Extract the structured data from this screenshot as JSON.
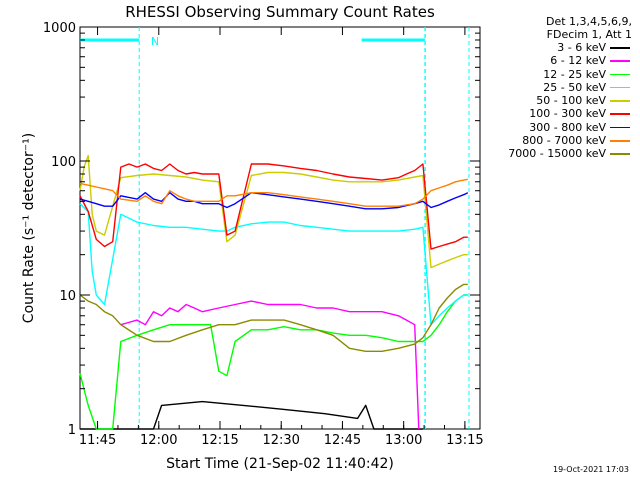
{
  "chart_data": {
    "type": "line",
    "title": "RHESSI Observing Summary Count Rates",
    "xlabel": "Start Time (21-Sep-02 11:40:42)",
    "ylabel": "Count Rate (s⁻¹ detector⁻¹)",
    "yscale": "log",
    "ylim": [
      1,
      1000
    ],
    "xlim_minutes_after_start": [
      0,
      98
    ],
    "x_ticks": [
      {
        "label": "11:45",
        "minute": 4.3
      },
      {
        "label": "12:00",
        "minute": 19.3
      },
      {
        "label": "12:15",
        "minute": 34.3
      },
      {
        "label": "12:30",
        "minute": 49.3
      },
      {
        "label": "12:45",
        "minute": 64.3
      },
      {
        "label": "13:00",
        "minute": 79.3
      },
      {
        "label": "13:15",
        "minute": 94.3
      }
    ],
    "y_ticks": [
      {
        "label": "1",
        "value": 1
      },
      {
        "label": "10",
        "value": 10
      },
      {
        "label": "100",
        "value": 100
      },
      {
        "label": "1000",
        "value": 1000
      }
    ],
    "annotation": "N",
    "night_flag": {
      "value": 800,
      "intervals": [
        [
          0,
          14.5
        ],
        [
          69,
          84.5
        ]
      ],
      "dashed_markers": [
        14.5,
        84.5,
        84.6,
        95.3
      ],
      "color": "#00ffff"
    },
    "legend_header": [
      "Det 1,3,4,5,6,9,",
      "FDecim 1, Att 1"
    ],
    "series": [
      {
        "name": "3 - 6 keV",
        "color": "#000000",
        "x": [
          0,
          10,
          12,
          18,
          20,
          30,
          40,
          50,
          60,
          68,
          70,
          72,
          82,
          84
        ],
        "y": [
          1,
          1,
          1,
          1,
          1.5,
          1.6,
          1.5,
          1.4,
          1.3,
          1.2,
          1.5,
          1,
          1,
          1
        ]
      },
      {
        "name": "6 - 12 keV",
        "color": "#ff00ff",
        "x": [
          10,
          14,
          16,
          18,
          20,
          22,
          24,
          26,
          28,
          30,
          34,
          38,
          42,
          46,
          50,
          54,
          58,
          62,
          66,
          70,
          74,
          78,
          80,
          82,
          83
        ],
        "y": [
          6,
          6.5,
          6,
          7.5,
          7,
          8,
          7.5,
          8.5,
          8,
          7.5,
          8,
          8.5,
          9,
          8.5,
          8.5,
          8.5,
          8,
          8,
          7.5,
          7.5,
          7.5,
          7,
          6.5,
          6,
          1
        ]
      },
      {
        "name": "12 - 25 keV",
        "color": "#00ff00",
        "x": [
          0,
          2,
          4,
          6,
          8,
          10,
          14,
          18,
          22,
          26,
          30,
          32,
          34,
          36,
          38,
          42,
          46,
          50,
          54,
          58,
          62,
          66,
          70,
          74,
          78,
          82,
          84,
          86,
          88,
          90,
          92,
          94,
          95
        ],
        "y": [
          2.6,
          1.5,
          1,
          1,
          1,
          4.5,
          5,
          5.5,
          6,
          6,
          6,
          6,
          2.7,
          2.5,
          4.5,
          5.5,
          5.5,
          5.8,
          5.5,
          5.5,
          5.2,
          5,
          5,
          4.8,
          4.5,
          4.5,
          4.5,
          5,
          6,
          7.5,
          9,
          10,
          10
        ]
      },
      {
        "name": "25 - 50 keV",
        "color": "#00ffff",
        "x": [
          0,
          2,
          3,
          4,
          6,
          10,
          14,
          18,
          22,
          26,
          30,
          34,
          36,
          38,
          42,
          46,
          50,
          54,
          58,
          62,
          66,
          70,
          74,
          78,
          82,
          84,
          86,
          88,
          90,
          92,
          94,
          95
        ],
        "y": [
          48,
          42,
          15,
          10,
          8.5,
          40,
          35,
          33,
          32,
          32,
          31,
          30,
          30,
          32,
          34,
          35,
          35,
          33,
          32,
          31,
          30,
          30,
          30,
          30,
          31,
          32,
          6,
          7,
          8,
          9,
          10,
          10
        ]
      },
      {
        "name": "50 - 100 keV",
        "color": "#cccc00",
        "x": [
          0,
          1,
          2,
          3,
          4,
          6,
          10,
          14,
          18,
          22,
          26,
          30,
          34,
          36,
          38,
          42,
          46,
          50,
          54,
          58,
          62,
          66,
          70,
          74,
          78,
          82,
          84,
          86,
          88,
          90,
          92,
          94,
          95
        ],
        "y": [
          60,
          90,
          110,
          40,
          30,
          28,
          75,
          78,
          80,
          78,
          76,
          72,
          70,
          25,
          28,
          78,
          82,
          82,
          80,
          76,
          72,
          70,
          70,
          70,
          72,
          76,
          78,
          16,
          17,
          18,
          19,
          20,
          20
        ]
      },
      {
        "name": "100 - 300 keV",
        "color": "#ff0000",
        "x": [
          0,
          2,
          4,
          6,
          8,
          10,
          12,
          14,
          16,
          18,
          20,
          22,
          24,
          26,
          28,
          30,
          34,
          36,
          38,
          42,
          46,
          50,
          54,
          58,
          62,
          66,
          70,
          74,
          78,
          80,
          82,
          84,
          86,
          88,
          90,
          92,
          94,
          95
        ],
        "y": [
          55,
          42,
          26,
          23,
          25,
          90,
          95,
          90,
          95,
          88,
          85,
          95,
          85,
          80,
          82,
          80,
          80,
          28,
          30,
          95,
          95,
          92,
          88,
          85,
          80,
          76,
          74,
          72,
          75,
          80,
          85,
          95,
          22,
          23,
          24,
          25,
          27,
          27
        ]
      },
      {
        "name": "300 - 800 keV",
        "color": "#0000ff",
        "x": [
          0,
          2,
          4,
          6,
          8,
          10,
          14,
          16,
          18,
          20,
          22,
          24,
          26,
          28,
          30,
          34,
          36,
          38,
          42,
          46,
          50,
          54,
          58,
          62,
          66,
          70,
          74,
          78,
          82,
          84,
          86,
          88,
          90,
          92,
          94,
          95
        ],
        "y": [
          52,
          50,
          48,
          46,
          46,
          55,
          52,
          58,
          52,
          50,
          58,
          52,
          50,
          50,
          48,
          48,
          45,
          48,
          58,
          56,
          54,
          52,
          50,
          48,
          46,
          44,
          44,
          45,
          48,
          50,
          45,
          47,
          50,
          53,
          56,
          58
        ]
      },
      {
        "name": "800 - 7000 keV",
        "color": "#ff8000",
        "x": [
          0,
          2,
          4,
          6,
          8,
          10,
          14,
          16,
          18,
          20,
          22,
          24,
          26,
          28,
          30,
          34,
          36,
          38,
          42,
          46,
          50,
          54,
          58,
          62,
          66,
          70,
          74,
          78,
          82,
          84,
          86,
          88,
          90,
          92,
          94,
          95
        ],
        "y": [
          68,
          66,
          64,
          62,
          60,
          52,
          50,
          55,
          50,
          48,
          60,
          55,
          52,
          50,
          50,
          50,
          55,
          55,
          58,
          58,
          56,
          54,
          52,
          50,
          48,
          46,
          46,
          46,
          48,
          52,
          60,
          63,
          66,
          70,
          72,
          73
        ]
      },
      {
        "name": "7000 - 15000 keV",
        "color": "#8b8b00",
        "x": [
          0,
          2,
          4,
          6,
          8,
          10,
          14,
          18,
          22,
          26,
          30,
          34,
          38,
          42,
          46,
          50,
          54,
          58,
          62,
          66,
          70,
          74,
          78,
          82,
          84,
          86,
          88,
          90,
          92,
          94,
          95
        ],
        "y": [
          10,
          9,
          8.5,
          7.5,
          7,
          6,
          5,
          4.5,
          4.5,
          5,
          5.5,
          6,
          6,
          6.5,
          6.5,
          6.5,
          6,
          5.5,
          5,
          4,
          3.8,
          3.8,
          4,
          4.3,
          4.8,
          6,
          8,
          9.5,
          11,
          12,
          12
        ]
      }
    ]
  },
  "timestamp": "19-Oct-2021 17:03"
}
